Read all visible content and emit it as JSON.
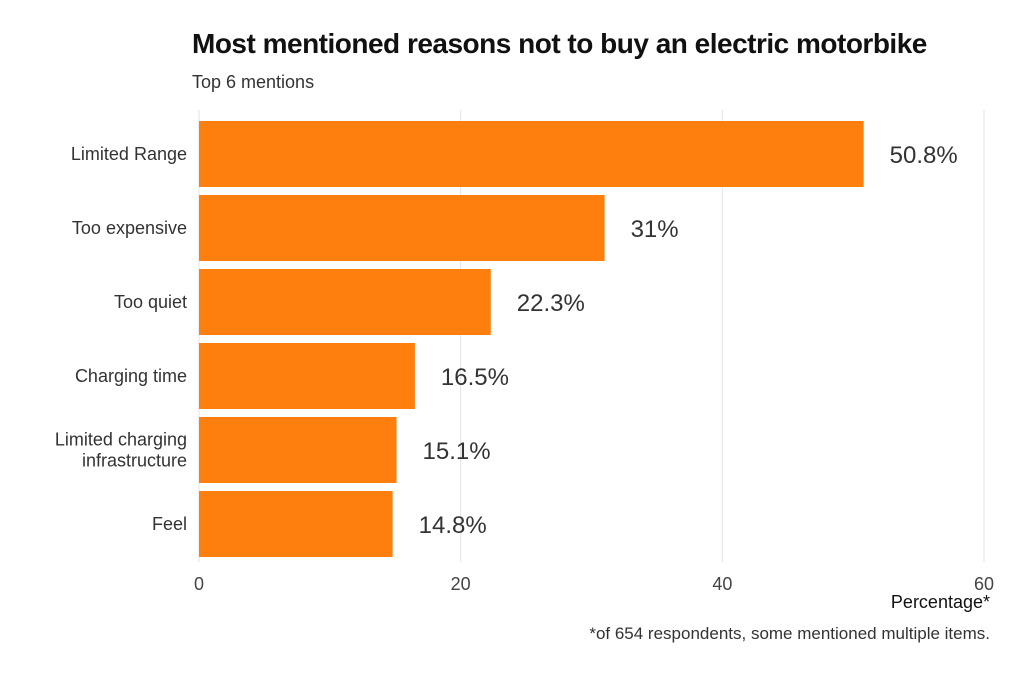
{
  "chart_data": {
    "type": "bar",
    "orientation": "horizontal",
    "title": "Most mentioned reasons not to buy an electric motorbike",
    "subtitle": "Top 6 mentions",
    "xlabel": "Percentage*",
    "caption": "*of 654 respondents, some mentioned multiple items.",
    "categories": [
      "Limited Range",
      "Too expensive",
      "Too quiet",
      "Charging time",
      "Limited charging infrastructure",
      "Feel"
    ],
    "category_lines": [
      [
        "Limited Range"
      ],
      [
        "Too expensive"
      ],
      [
        "Too quiet"
      ],
      [
        "Charging time"
      ],
      [
        "Limited charging",
        "infrastructure"
      ],
      [
        "Feel"
      ]
    ],
    "values": [
      50.8,
      31,
      22.3,
      16.5,
      15.1,
      14.8
    ],
    "value_labels": [
      "50.8%",
      "31%",
      "22.3%",
      "16.5%",
      "15.1%",
      "14.8%"
    ],
    "xlim": [
      0,
      60
    ],
    "xticks": [
      0,
      20,
      40,
      60
    ],
    "grid": true,
    "bar_color": "#FF7F0E"
  }
}
